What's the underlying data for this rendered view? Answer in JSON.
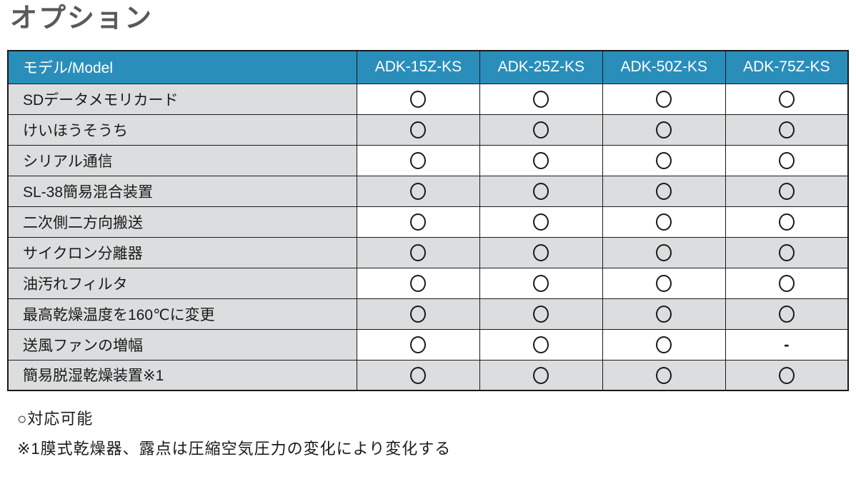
{
  "title": "オプション",
  "table": {
    "row_header_label": "モデル/Model",
    "columns": [
      "ADK-15Z-KS",
      "ADK-25Z-KS",
      "ADK-50Z-KS",
      "ADK-75Z-KS"
    ],
    "rows": [
      {
        "label": "SDデータメモリカード",
        "values": [
          "○",
          "○",
          "○",
          "○"
        ]
      },
      {
        "label": "けいほうそうち",
        "values": [
          "○",
          "○",
          "○",
          "○"
        ]
      },
      {
        "label": "シリアル通信",
        "values": [
          "○",
          "○",
          "○",
          "○"
        ]
      },
      {
        "label": "SL-38簡易混合装置",
        "values": [
          "○",
          "○",
          "○",
          "○"
        ]
      },
      {
        "label": "二次側二方向搬送",
        "values": [
          "○",
          "○",
          "○",
          "○"
        ]
      },
      {
        "label": "サイクロン分離器",
        "values": [
          "○",
          "○",
          "○",
          "○"
        ]
      },
      {
        "label": "油汚れフィルタ",
        "values": [
          "○",
          "○",
          "○",
          "○"
        ]
      },
      {
        "label": "最高乾燥温度を160℃に変更",
        "values": [
          "○",
          "○",
          "○",
          "○"
        ]
      },
      {
        "label": "送風ファンの増幅",
        "values": [
          "○",
          "○",
          "○",
          "-"
        ]
      },
      {
        "label": "簡易脱湿乾燥装置※1",
        "values": [
          "○",
          "○",
          "○",
          "○"
        ]
      }
    ],
    "available_symbol": "○",
    "not_available_symbol": "-"
  },
  "notes": [
    "○対応可能",
    "※1膜式乾燥器、露点は圧縮空気圧力の変化により変化する"
  ],
  "colors": {
    "header_bg": "#2A8EBB",
    "alt_row_bg": "#DCDDDE",
    "border": "#1A1A1A",
    "title_text": "#595959"
  }
}
